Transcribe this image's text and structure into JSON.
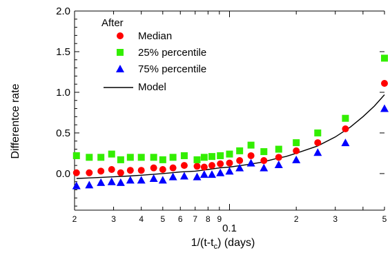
{
  "chart_data": {
    "type": "scatter",
    "title": "",
    "xlabel": "",
    "ylabel": "Differentce rate",
    "xscale": "log",
    "xlim": [
      0.02,
      0.5
    ],
    "ylim": [
      -0.45,
      2.0
    ],
    "grid": false,
    "legend_title": "After",
    "legend_placement": "top-left",
    "y_ticks": [
      "0.0",
      "0.5",
      "1.0",
      "1.5",
      "2.0"
    ],
    "x_major_label": "0.1",
    "x_minor_ticks": [
      {
        "label": "2",
        "value": 0.02
      },
      {
        "label": "3",
        "value": 0.03
      },
      {
        "label": "4",
        "value": 0.04
      },
      {
        "label": "5",
        "value": 0.05
      },
      {
        "label": "6",
        "value": 0.06
      },
      {
        "label": "7",
        "value": 0.07
      },
      {
        "label": "8",
        "value": 0.08
      },
      {
        "label": "9",
        "value": 0.09
      },
      {
        "label": "2",
        "value": 0.2
      },
      {
        "label": "3",
        "value": 0.3
      },
      {
        "label": "5",
        "value": 0.5
      }
    ],
    "series": [
      {
        "name": "Median",
        "marker": "circle",
        "color": "#ff0000",
        "x": [
          0.0204,
          0.0233,
          0.0263,
          0.0294,
          0.0323,
          0.0357,
          0.04,
          0.0455,
          0.05,
          0.0556,
          0.0625,
          0.0714,
          0.0769,
          0.0833,
          0.0909,
          0.1,
          0.1111,
          0.125,
          0.1429,
          0.1667,
          0.2,
          0.25,
          0.3333,
          0.5
        ],
        "y": [
          0.01,
          0.01,
          0.03,
          0.05,
          0.01,
          0.04,
          0.04,
          0.07,
          0.05,
          0.07,
          0.1,
          0.09,
          0.08,
          0.1,
          0.12,
          0.13,
          0.16,
          0.22,
          0.16,
          0.2,
          0.28,
          0.38,
          0.55,
          1.11
        ]
      },
      {
        "name": "25% percentile",
        "marker": "square",
        "color": "#33ee00",
        "x": [
          0.0204,
          0.0233,
          0.0263,
          0.0294,
          0.0323,
          0.0357,
          0.04,
          0.0455,
          0.05,
          0.0556,
          0.0625,
          0.0714,
          0.0769,
          0.0833,
          0.0909,
          0.1,
          0.1111,
          0.125,
          0.1429,
          0.1667,
          0.2,
          0.25,
          0.3333,
          0.5
        ],
        "y": [
          0.22,
          0.2,
          0.2,
          0.24,
          0.17,
          0.2,
          0.2,
          0.2,
          0.17,
          0.2,
          0.22,
          0.17,
          0.2,
          0.21,
          0.22,
          0.24,
          0.28,
          0.35,
          0.27,
          0.3,
          0.38,
          0.5,
          0.68,
          1.42
        ]
      },
      {
        "name": "75% percentile",
        "marker": "triangle",
        "color": "#0000ff",
        "x": [
          0.0204,
          0.0233,
          0.0263,
          0.0294,
          0.0323,
          0.0357,
          0.04,
          0.0455,
          0.05,
          0.0556,
          0.0625,
          0.0714,
          0.0769,
          0.0833,
          0.0909,
          0.1,
          0.1111,
          0.125,
          0.1429,
          0.1667,
          0.2,
          0.25,
          0.3333,
          0.5
        ],
        "y": [
          -0.15,
          -0.14,
          -0.11,
          -0.1,
          -0.11,
          -0.08,
          -0.08,
          -0.06,
          -0.08,
          -0.04,
          -0.03,
          -0.04,
          -0.01,
          -0.01,
          0.01,
          0.03,
          0.07,
          0.13,
          0.07,
          0.11,
          0.17,
          0.26,
          0.38,
          0.8
        ]
      },
      {
        "name": "Model",
        "marker": "line",
        "color": "#000000",
        "x": [
          0.0204,
          0.025,
          0.03,
          0.035,
          0.04,
          0.05,
          0.06,
          0.07,
          0.08,
          0.09,
          0.1,
          0.12,
          0.14,
          0.16,
          0.18,
          0.2,
          0.25,
          0.3,
          0.35,
          0.4,
          0.45,
          0.5
        ],
        "y": [
          -0.06,
          -0.05,
          -0.04,
          -0.03,
          -0.02,
          0.0,
          0.02,
          0.03,
          0.05,
          0.07,
          0.08,
          0.11,
          0.14,
          0.18,
          0.21,
          0.25,
          0.34,
          0.45,
          0.57,
          0.7,
          0.83,
          0.97
        ]
      }
    ]
  }
}
